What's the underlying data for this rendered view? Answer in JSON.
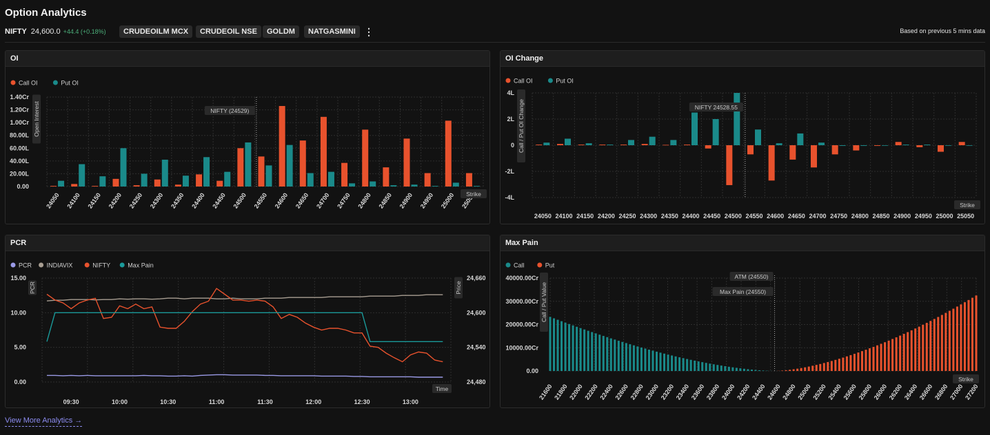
{
  "header": {
    "title": "Option Analytics",
    "symbol": "NIFTY",
    "price": "24,600.0",
    "change": "+44.4 (+0.18%)",
    "chips": [
      "CRUDEOILM MCX",
      "CRUDEOIL NSE",
      "GOLDM",
      "NATGASMINI"
    ],
    "based_on": "Based on previous 5 mins data",
    "more_icon": "kebab-menu-icon"
  },
  "footer": {
    "link": "View More Analytics",
    "link_icon": "arrow-right-icon"
  },
  "colors": {
    "call": "#e8522d",
    "put": "#1a8a8a",
    "pcr": "#9a9ae6",
    "vix": "#a89e92",
    "nifty": "#e8522d",
    "maxpain": "#1a9a9a"
  },
  "panels": {
    "oi": {
      "title": "OI",
      "chart_data": {
        "type": "bar",
        "categories": [
          "24050",
          "24100",
          "24150",
          "24200",
          "24250",
          "24300",
          "24350",
          "24400",
          "24450",
          "24500",
          "24550",
          "24600",
          "24650",
          "24700",
          "24750",
          "24800",
          "24850",
          "24900",
          "24950",
          "25000",
          "25050"
        ],
        "series": [
          {
            "name": "Call OI",
            "values": [
              1,
              4,
              1,
              12,
              2,
              11,
              3,
              19,
              9,
              60,
              47,
              126,
              72,
              109,
              37,
              89,
              30,
              75,
              21,
              103,
              21
            ]
          },
          {
            "name": "Put OI",
            "values": [
              9,
              35,
              16,
              60,
              20,
              42,
              17,
              46,
              23,
              69,
              33,
              65,
              21,
              23,
              5,
              8,
              2,
              3,
              1,
              6,
              1
            ]
          }
        ],
        "y_ticks": [
          "0.00",
          "20.00L",
          "40.00L",
          "60.00L",
          "80.00L",
          "1.00Cr",
          "1.20Cr",
          "1.40Cr"
        ],
        "ylim": [
          0,
          140
        ],
        "ylabel": "Open Interest",
        "xlabel": "Strike",
        "annotation": "NIFTY (24529)",
        "annotation_x": 24529
      }
    },
    "oi_change": {
      "title": "OI Change",
      "chart_data": {
        "type": "bar",
        "categories": [
          "24050",
          "24100",
          "24150",
          "24200",
          "24250",
          "24300",
          "24350",
          "24400",
          "24450",
          "24500",
          "24550",
          "24600",
          "24650",
          "24700",
          "24750",
          "24800",
          "24850",
          "24900",
          "24950",
          "25000",
          "25050"
        ],
        "series": [
          {
            "name": "Call OI",
            "values": [
              0.05,
              0.1,
              0.05,
              0.05,
              0.05,
              0.1,
              0.03,
              0.05,
              -0.25,
              -3.05,
              -0.7,
              -2.7,
              -1.1,
              -1.7,
              -0.7,
              -0.4,
              -0.05,
              0.25,
              -0.15,
              -0.5,
              0.25
            ]
          },
          {
            "name": "Put OI",
            "values": [
              0.2,
              0.5,
              0.15,
              0.05,
              0.4,
              0.65,
              0.4,
              2.5,
              2.0,
              4.0,
              1.2,
              0.15,
              0.9,
              0.2,
              -0.05,
              -0.05,
              0.0,
              0.05,
              0.05,
              0.0,
              0.0
            ]
          }
        ],
        "y_ticks": [
          "-4L",
          "-2L",
          "0",
          "2L",
          "4L"
        ],
        "ylim": [
          -4,
          4
        ],
        "ylabel": "Call / Put OI Change",
        "xlabel": "Strike",
        "annotation": "NIFTY 24528.55",
        "annotation_x": 24528.55
      }
    },
    "pcr": {
      "title": "PCR",
      "chart_data": {
        "type": "line",
        "legend": [
          "PCR",
          "INDIAVIX",
          "NIFTY",
          "Max Pain"
        ],
        "x_ticks": [
          "09:30",
          "10:00",
          "10:30",
          "11:00",
          "11:30",
          "12:00",
          "12:30",
          "13:00"
        ],
        "x_tick_min": [
          570,
          600,
          630,
          660,
          690,
          720,
          750,
          780
        ],
        "xlim": [
          552,
          805
        ],
        "x_min": [
          555,
          560,
          565,
          570,
          575,
          580,
          585,
          590,
          595,
          600,
          605,
          610,
          615,
          620,
          625,
          630,
          635,
          640,
          645,
          650,
          655,
          660,
          665,
          670,
          675,
          680,
          685,
          690,
          695,
          700,
          705,
          710,
          715,
          720,
          725,
          730,
          735,
          740,
          745,
          750,
          755,
          760,
          765,
          770,
          775,
          780,
          785,
          790,
          795,
          800
        ],
        "y_left_ticks": [
          "0.00",
          "5.00",
          "10.00",
          "15.00"
        ],
        "ylim_left": [
          0,
          15
        ],
        "y_right_ticks": [
          "24,480",
          "24,540",
          "24,600",
          "24,660"
        ],
        "ylim_right": [
          24480,
          24660
        ],
        "ylabel_left": "PCR",
        "ylabel_right": "Price",
        "xlabel": "Time",
        "series": [
          {
            "name": "PCR",
            "axis": "left",
            "values": [
              0.95,
              0.95,
              0.9,
              0.95,
              0.9,
              0.95,
              0.9,
              0.9,
              0.9,
              0.9,
              0.9,
              0.9,
              0.95,
              0.9,
              0.9,
              0.85,
              0.85,
              0.9,
              0.85,
              0.95,
              1.0,
              1.05,
              1.05,
              1.0,
              1.0,
              1.0,
              1.0,
              0.95,
              0.95,
              0.9,
              0.9,
              0.9,
              0.9,
              0.9,
              0.85,
              0.85,
              0.85,
              0.85,
              0.8,
              0.8,
              0.75,
              0.75,
              0.75,
              0.75,
              0.75,
              0.75,
              0.7,
              0.7,
              0.7,
              0.7
            ]
          },
          {
            "name": "INDIAVIX",
            "axis": "left",
            "values": [
              11.7,
              11.8,
              11.8,
              11.9,
              11.9,
              11.9,
              11.85,
              11.9,
              11.9,
              12.0,
              11.95,
              12.0,
              12.0,
              11.95,
              12.0,
              12.1,
              12.1,
              12.0,
              12.1,
              12.1,
              12.1,
              12.0,
              12.0,
              12.1,
              12.0,
              12.0,
              12.0,
              12.1,
              12.1,
              12.1,
              12.2,
              12.2,
              12.2,
              12.2,
              12.2,
              12.3,
              12.3,
              12.3,
              12.3,
              12.3,
              12.4,
              12.4,
              12.4,
              12.4,
              12.5,
              12.5,
              12.5,
              12.6,
              12.6,
              12.6
            ]
          },
          {
            "name": "NIFTY",
            "axis": "right",
            "values": [
              24632,
              24622,
              24617,
              24607,
              24617,
              24622,
              24625,
              24590,
              24592,
              24612,
              24607,
              24615,
              24607,
              24610,
              24575,
              24573,
              24573,
              24585,
              24602,
              24615,
              24620,
              24642,
              24632,
              24622,
              24622,
              24620,
              24622,
              24620,
              24610,
              24590,
              24597,
              24592,
              24582,
              24575,
              24570,
              24573,
              24573,
              24570,
              24565,
              24565,
              24542,
              24540,
              24530,
              24522,
              24515,
              24527,
              24532,
              24530,
              24518,
              24515
            ]
          },
          {
            "name": "Max Pain",
            "axis": "right",
            "values": [
              24550,
              24600,
              24600,
              24600,
              24600,
              24600,
              24600,
              24600,
              24600,
              24600,
              24600,
              24600,
              24600,
              24600,
              24600,
              24600,
              24600,
              24600,
              24600,
              24600,
              24600,
              24600,
              24600,
              24600,
              24600,
              24600,
              24600,
              24600,
              24600,
              24600,
              24600,
              24600,
              24600,
              24600,
              24600,
              24600,
              24600,
              24600,
              24600,
              24600,
              24550,
              24550,
              24550,
              24550,
              24550,
              24550,
              24550,
              24550,
              24550,
              24550
            ]
          }
        ]
      }
    },
    "max_pain": {
      "title": "Max Pain",
      "chart_data": {
        "type": "bar",
        "legend": [
          "Call",
          "Put"
        ],
        "x_ticks": [
          "21600",
          "21800",
          "22000",
          "22200",
          "22400",
          "22600",
          "22800",
          "23000",
          "23200",
          "23400",
          "23600",
          "23800",
          "24000",
          "24200",
          "24400",
          "24600",
          "24800",
          "25000",
          "25200",
          "25400",
          "25600",
          "25800",
          "26000",
          "26200",
          "26400",
          "26600",
          "26800",
          "27000",
          "27200"
        ],
        "strike_min": 21600,
        "strike_max": 27200,
        "strike_step": 50,
        "atm": 24550,
        "call_curve": {
          "start": 24000,
          "end_strike": 24550,
          "scale": 23300
        },
        "put_curve": {
          "start": 24550,
          "end_strike": 27200,
          "scale": 32500
        },
        "y_ticks": [
          "0.00",
          "10000.00Cr",
          "20000.00Cr",
          "30000.00Cr",
          "40000.00Cr"
        ],
        "ylim": [
          0,
          40000
        ],
        "ylabel": "Call / Put Value",
        "xlabel": "Strike",
        "annotations": [
          "ATM (24550)",
          "Max Pain (24550)"
        ]
      }
    }
  }
}
